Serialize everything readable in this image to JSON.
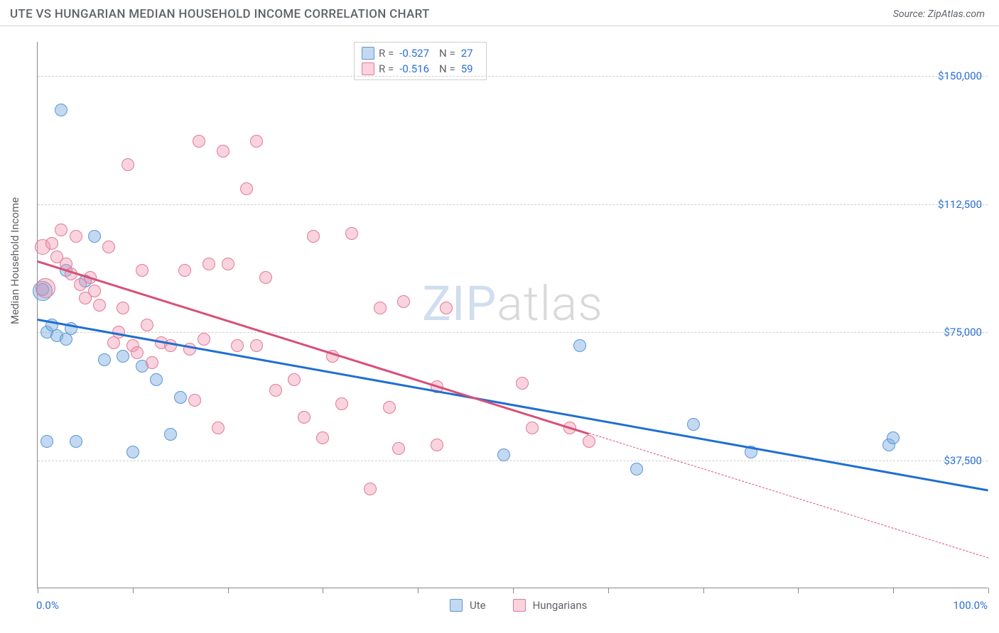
{
  "header": {
    "title": "UTE VS HUNGARIAN MEDIAN HOUSEHOLD INCOME CORRELATION CHART",
    "source_prefix": "Source: ",
    "source_name": "ZipAtlas.com"
  },
  "chart": {
    "type": "scatter",
    "ylabel": "Median Household Income",
    "xlim": [
      0,
      100
    ],
    "ylim": [
      0,
      160000
    ],
    "xmin_label": "0.0%",
    "xmax_label": "100.0%",
    "yticks": [
      {
        "v": 37500,
        "label": "$37,500"
      },
      {
        "v": 75000,
        "label": "$75,000"
      },
      {
        "v": 112500,
        "label": "$112,500"
      },
      {
        "v": 150000,
        "label": "$150,000"
      }
    ],
    "xticks": [
      0,
      10,
      20,
      30,
      40,
      50,
      60,
      70,
      80,
      90,
      100
    ],
    "background_color": "#ffffff",
    "grid_color": "#d0d0d0",
    "tick_label_color": "#2a6fd6",
    "axis_label_color": "#5f6368",
    "series": {
      "ute": {
        "label": "Ute",
        "fill": "rgba(120,170,225,0.45)",
        "stroke": "#5a96d4",
        "trend_color": "#1f6fd0",
        "R": "-0.527",
        "N": "27",
        "trend": {
          "x1": 0,
          "y1": 79000,
          "x2": 100,
          "y2": 29000
        },
        "points": [
          {
            "x": 2.5,
            "y": 140000,
            "r": 9
          },
          {
            "x": 0.5,
            "y": 87000,
            "r": 14
          },
          {
            "x": 0.5,
            "y": 87500,
            "r": 9
          },
          {
            "x": 1.0,
            "y": 75000,
            "r": 9
          },
          {
            "x": 1.5,
            "y": 77000,
            "r": 9
          },
          {
            "x": 2.0,
            "y": 74000,
            "r": 9
          },
          {
            "x": 3.0,
            "y": 73000,
            "r": 9
          },
          {
            "x": 3.5,
            "y": 76000,
            "r": 9
          },
          {
            "x": 5.0,
            "y": 90000,
            "r": 9
          },
          {
            "x": 6.0,
            "y": 103000,
            "r": 9
          },
          {
            "x": 7.0,
            "y": 67000,
            "r": 9
          },
          {
            "x": 9.0,
            "y": 68000,
            "r": 9
          },
          {
            "x": 11.0,
            "y": 65000,
            "r": 9
          },
          {
            "x": 12.5,
            "y": 61000,
            "r": 9
          },
          {
            "x": 14.0,
            "y": 45000,
            "r": 9
          },
          {
            "x": 15.0,
            "y": 56000,
            "r": 9
          },
          {
            "x": 1.0,
            "y": 43000,
            "r": 9
          },
          {
            "x": 4.0,
            "y": 43000,
            "r": 9
          },
          {
            "x": 10.0,
            "y": 40000,
            "r": 9
          },
          {
            "x": 49.0,
            "y": 39000,
            "r": 9
          },
          {
            "x": 57.0,
            "y": 71000,
            "r": 9
          },
          {
            "x": 63.0,
            "y": 35000,
            "r": 9
          },
          {
            "x": 69.0,
            "y": 48000,
            "r": 9
          },
          {
            "x": 75.0,
            "y": 40000,
            "r": 9
          },
          {
            "x": 89.5,
            "y": 42000,
            "r": 9
          },
          {
            "x": 90.0,
            "y": 44000,
            "r": 9
          },
          {
            "x": 3.0,
            "y": 93000,
            "r": 9
          }
        ]
      },
      "hungarians": {
        "label": "Hungarians",
        "fill": "rgba(240,150,175,0.42)",
        "stroke": "#e07a99",
        "trend_color": "#d94f78",
        "R": "-0.516",
        "N": "59",
        "trend_solid": {
          "x1": 0,
          "y1": 96000,
          "x2": 58,
          "y2": 45500
        },
        "trend_dash": {
          "x1": 58,
          "y1": 45500,
          "x2": 100,
          "y2": 9000
        },
        "points": [
          {
            "x": 0.5,
            "y": 100000,
            "r": 11
          },
          {
            "x": 0.8,
            "y": 88000,
            "r": 14
          },
          {
            "x": 1.5,
            "y": 101000,
            "r": 9
          },
          {
            "x": 2.0,
            "y": 97000,
            "r": 9
          },
          {
            "x": 2.5,
            "y": 105000,
            "r": 9
          },
          {
            "x": 3.0,
            "y": 95000,
            "r": 9
          },
          {
            "x": 3.5,
            "y": 92000,
            "r": 9
          },
          {
            "x": 4.0,
            "y": 103000,
            "r": 9
          },
          {
            "x": 4.5,
            "y": 89000,
            "r": 9
          },
          {
            "x": 5.0,
            "y": 85000,
            "r": 9
          },
          {
            "x": 5.5,
            "y": 91000,
            "r": 9
          },
          {
            "x": 6.0,
            "y": 87000,
            "r": 9
          },
          {
            "x": 6.5,
            "y": 83000,
            "r": 9
          },
          {
            "x": 7.5,
            "y": 100000,
            "r": 9
          },
          {
            "x": 8.0,
            "y": 72000,
            "r": 9
          },
          {
            "x": 8.5,
            "y": 75000,
            "r": 9
          },
          {
            "x": 9.0,
            "y": 82000,
            "r": 9
          },
          {
            "x": 9.5,
            "y": 124000,
            "r": 9
          },
          {
            "x": 10.0,
            "y": 71000,
            "r": 9
          },
          {
            "x": 10.5,
            "y": 69000,
            "r": 9
          },
          {
            "x": 11.0,
            "y": 93000,
            "r": 9
          },
          {
            "x": 11.5,
            "y": 77000,
            "r": 9
          },
          {
            "x": 12.0,
            "y": 66000,
            "r": 9
          },
          {
            "x": 13.0,
            "y": 72000,
            "r": 9
          },
          {
            "x": 14.0,
            "y": 71000,
            "r": 9
          },
          {
            "x": 15.5,
            "y": 93000,
            "r": 9
          },
          {
            "x": 16.0,
            "y": 70000,
            "r": 9
          },
          {
            "x": 16.5,
            "y": 55000,
            "r": 9
          },
          {
            "x": 17.0,
            "y": 131000,
            "r": 9
          },
          {
            "x": 17.5,
            "y": 73000,
            "r": 9
          },
          {
            "x": 18.0,
            "y": 95000,
            "r": 9
          },
          {
            "x": 19.0,
            "y": 47000,
            "r": 9
          },
          {
            "x": 19.5,
            "y": 128000,
            "r": 9
          },
          {
            "x": 20.0,
            "y": 95000,
            "r": 9
          },
          {
            "x": 21.0,
            "y": 71000,
            "r": 9
          },
          {
            "x": 22.0,
            "y": 117000,
            "r": 9
          },
          {
            "x": 23.0,
            "y": 71000,
            "r": 9
          },
          {
            "x": 23.0,
            "y": 131000,
            "r": 9
          },
          {
            "x": 24.0,
            "y": 91000,
            "r": 9
          },
          {
            "x": 25.0,
            "y": 58000,
            "r": 9
          },
          {
            "x": 27.0,
            "y": 61000,
            "r": 9
          },
          {
            "x": 28.0,
            "y": 50000,
            "r": 9
          },
          {
            "x": 29.0,
            "y": 103000,
            "r": 9
          },
          {
            "x": 30.0,
            "y": 44000,
            "r": 9
          },
          {
            "x": 31.0,
            "y": 68000,
            "r": 9
          },
          {
            "x": 32.0,
            "y": 54000,
            "r": 9
          },
          {
            "x": 33.0,
            "y": 104000,
            "r": 9
          },
          {
            "x": 35.0,
            "y": 29000,
            "r": 9
          },
          {
            "x": 36.0,
            "y": 82000,
            "r": 9
          },
          {
            "x": 37.0,
            "y": 53000,
            "r": 9
          },
          {
            "x": 38.0,
            "y": 41000,
            "r": 9
          },
          {
            "x": 38.5,
            "y": 84000,
            "r": 9
          },
          {
            "x": 42.0,
            "y": 42000,
            "r": 9
          },
          {
            "x": 42.0,
            "y": 59000,
            "r": 9
          },
          {
            "x": 43.0,
            "y": 82000,
            "r": 9
          },
          {
            "x": 51.0,
            "y": 60000,
            "r": 9
          },
          {
            "x": 52.0,
            "y": 47000,
            "r": 9
          },
          {
            "x": 56.0,
            "y": 47000,
            "r": 9
          },
          {
            "x": 58.0,
            "y": 43000,
            "r": 9
          }
        ]
      }
    },
    "watermark": {
      "zip": "ZIP",
      "atlas": "atlas"
    },
    "stat_labels": {
      "R": "R =",
      "N": "N ="
    }
  }
}
